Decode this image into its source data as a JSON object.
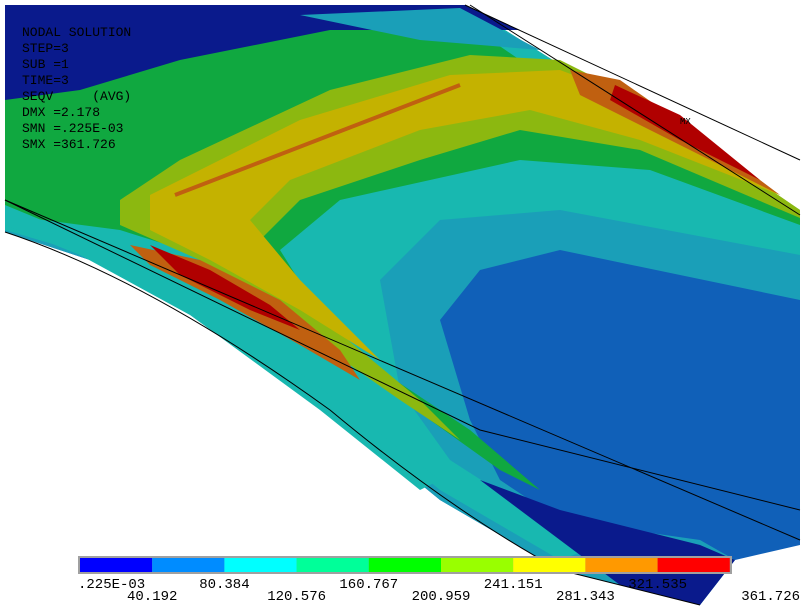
{
  "info": {
    "lines": [
      "NODAL SOLUTION",
      "STEP=3",
      "SUB =1",
      "TIME=3",
      "SEQV     (AVG)",
      "DMX =2.178",
      "SMN =.225E-03",
      "SMX =361.726"
    ],
    "max_marker": "MX"
  },
  "legend": {
    "colors": [
      "#0000ff",
      "#008cff",
      "#00ffff",
      "#00ff99",
      "#00ff00",
      "#99ff00",
      "#ffff00",
      "#ff9900",
      "#ff0000"
    ],
    "labels": [
      ".225E-03",
      "40.192",
      "80.384",
      "120.576",
      "160.767",
      "200.959",
      "241.151",
      "281.343",
      "321.535",
      "361.726"
    ]
  }
}
